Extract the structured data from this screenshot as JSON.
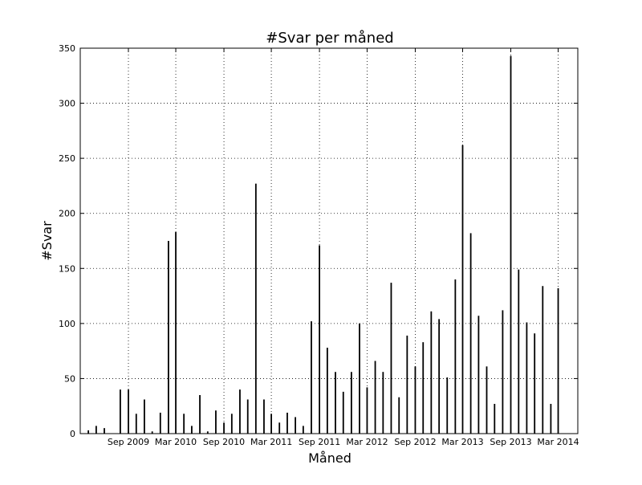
{
  "chart_data": {
    "type": "bar",
    "title": "#Svar per måned",
    "xlabel": "Måned",
    "ylabel": "#Svar",
    "ylim": [
      0,
      350
    ],
    "yticks": [
      0,
      50,
      100,
      150,
      200,
      250,
      300,
      350
    ],
    "xlim": [
      "2009-03-01",
      "2014-05-15"
    ],
    "xticks": [
      {
        "date": "2009-09-01",
        "label": "Sep 2009"
      },
      {
        "date": "2010-03-01",
        "label": "Mar 2010"
      },
      {
        "date": "2010-09-01",
        "label": "Sep 2010"
      },
      {
        "date": "2011-03-01",
        "label": "Mar 2011"
      },
      {
        "date": "2011-09-01",
        "label": "Sep 2011"
      },
      {
        "date": "2012-03-01",
        "label": "Mar 2012"
      },
      {
        "date": "2012-09-01",
        "label": "Sep 2012"
      },
      {
        "date": "2013-03-01",
        "label": "Mar 2013"
      },
      {
        "date": "2013-09-01",
        "label": "Sep 2013"
      },
      {
        "date": "2014-03-01",
        "label": "Mar 2014"
      }
    ],
    "grid": true,
    "grid_style": "dotted",
    "bar_color": "#000000",
    "x": [
      "2009-04-01",
      "2009-05-01",
      "2009-06-01",
      "2009-08-01",
      "2009-09-01",
      "2009-10-01",
      "2009-11-01",
      "2009-12-01",
      "2010-01-01",
      "2010-02-01",
      "2010-03-01",
      "2010-04-01",
      "2010-05-01",
      "2010-06-01",
      "2010-07-01",
      "2010-08-01",
      "2010-09-01",
      "2010-10-01",
      "2010-11-01",
      "2010-12-01",
      "2011-01-01",
      "2011-02-01",
      "2011-03-01",
      "2011-04-01",
      "2011-05-01",
      "2011-06-01",
      "2011-07-01",
      "2011-08-01",
      "2011-09-01",
      "2011-10-01",
      "2011-11-01",
      "2011-12-01",
      "2012-01-01",
      "2012-02-01",
      "2012-03-01",
      "2012-04-01",
      "2012-05-01",
      "2012-06-01",
      "2012-07-01",
      "2012-08-01",
      "2012-09-01",
      "2012-10-01",
      "2012-11-01",
      "2012-12-01",
      "2013-01-01",
      "2013-02-01",
      "2013-03-01",
      "2013-04-01",
      "2013-05-01",
      "2013-06-01",
      "2013-07-01",
      "2013-08-01",
      "2013-09-01",
      "2013-10-01",
      "2013-11-01",
      "2013-12-01",
      "2014-01-01",
      "2014-02-01",
      "2014-03-01"
    ],
    "values": [
      3,
      7,
      5,
      40,
      40,
      18,
      31,
      2,
      19,
      175,
      183,
      18,
      7,
      35,
      2,
      21,
      10,
      18,
      40,
      31,
      227,
      31,
      18,
      10,
      19,
      15,
      7,
      102,
      171,
      78,
      56,
      38,
      56,
      100,
      42,
      66,
      56,
      137,
      33,
      89,
      61,
      83,
      111,
      104,
      51,
      140,
      262,
      182,
      107,
      61,
      27,
      112,
      343,
      149,
      101,
      91,
      134,
      27,
      132
    ]
  }
}
